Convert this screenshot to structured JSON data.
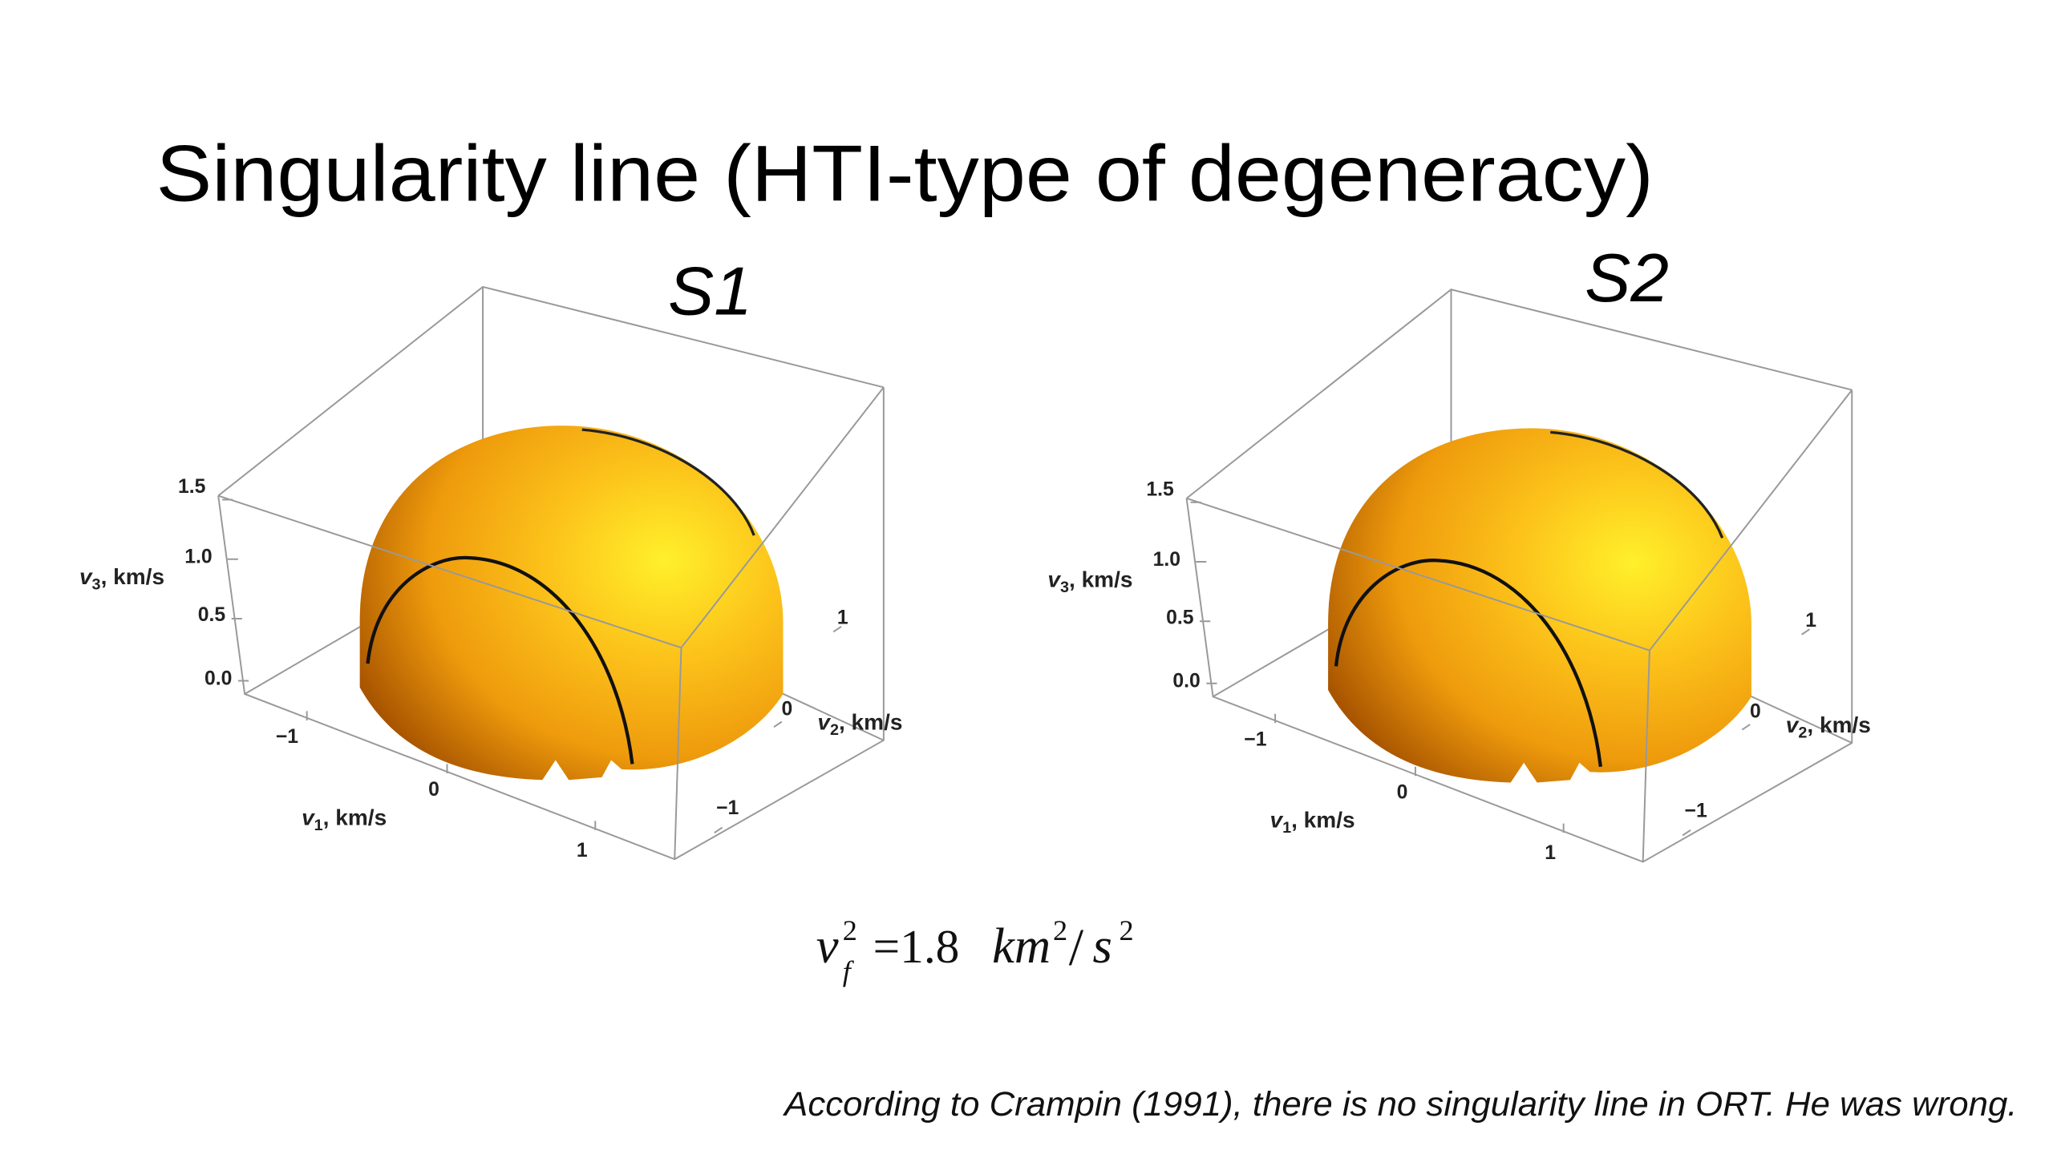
{
  "title": "Singularity line (HTI-type of degeneracy)",
  "plots": [
    {
      "label": "S1",
      "v3_axis": {
        "symbol": "v",
        "index": "3",
        "unit": ", km/s",
        "ticks": [
          "0.0",
          "0.5",
          "1.0",
          "1.5"
        ]
      },
      "v1_axis": {
        "symbol": "v",
        "index": "1",
        "unit": ", km/s",
        "ticks": [
          "−1",
          "0",
          "1"
        ]
      },
      "v2_axis": {
        "symbol": "v",
        "index": "2",
        "unit": ", km/s",
        "ticks": [
          "−1",
          "0",
          "1"
        ]
      }
    },
    {
      "label": "S2",
      "v3_axis": {
        "symbol": "v",
        "index": "3",
        "unit": ", km/s",
        "ticks": [
          "0.0",
          "0.5",
          "1.0",
          "1.5"
        ]
      },
      "v1_axis": {
        "symbol": "v",
        "index": "1",
        "unit": ", km/s",
        "ticks": [
          "−1",
          "0",
          "1"
        ]
      },
      "v2_axis": {
        "symbol": "v",
        "index": "2",
        "unit": ", km/s",
        "ticks": [
          "−1",
          "0",
          "1"
        ]
      }
    }
  ],
  "formula": {
    "base": "v",
    "sub": "f",
    "sup": "2",
    "equals": "=1.8",
    "unit1": "km",
    "unit1_sup": "2",
    "slash": "/",
    "unit2": "s",
    "unit2_sup": "2"
  },
  "footnote": "According to Crampin (1991), there is no singularity line in ORT. He was wrong."
}
